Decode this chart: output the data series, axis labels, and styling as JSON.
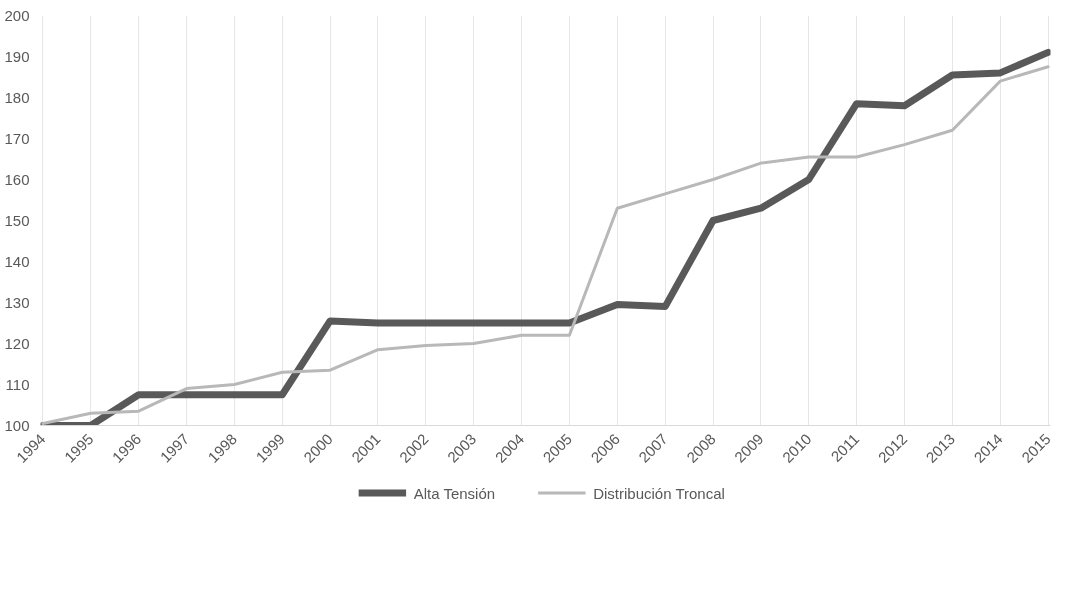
{
  "chart_data": {
    "type": "line",
    "categories": [
      "1994",
      "1995",
      "1996",
      "1997",
      "1998",
      "1999",
      "2000",
      "2001",
      "2002",
      "2003",
      "2004",
      "2005",
      "2006",
      "2007",
      "2008",
      "2009",
      "2010",
      "2011",
      "2012",
      "2013",
      "2014",
      "2015"
    ],
    "series": [
      {
        "name": "Alta Tensión",
        "color": "#595959",
        "values": [
          100,
          100,
          107.5,
          107.5,
          107.5,
          107.5,
          125.5,
          125,
          125,
          125,
          125,
          125,
          129.5,
          129,
          150,
          153,
          160,
          178.5,
          178,
          185.5,
          186,
          191
        ]
      },
      {
        "name": "Distribución Troncal",
        "color": "#b8b8b8",
        "values": [
          100.5,
          103,
          103.5,
          109,
          110,
          113,
          113.5,
          118.5,
          119.5,
          120,
          122,
          122,
          153,
          156.5,
          160,
          164,
          165.5,
          165.5,
          168.5,
          172,
          184,
          187.5
        ]
      }
    ],
    "ylim": [
      100,
      200
    ],
    "yticks": [
      100,
      110,
      120,
      130,
      140,
      150,
      160,
      170,
      180,
      190,
      200
    ],
    "grid": "x",
    "legend": "bottom"
  }
}
